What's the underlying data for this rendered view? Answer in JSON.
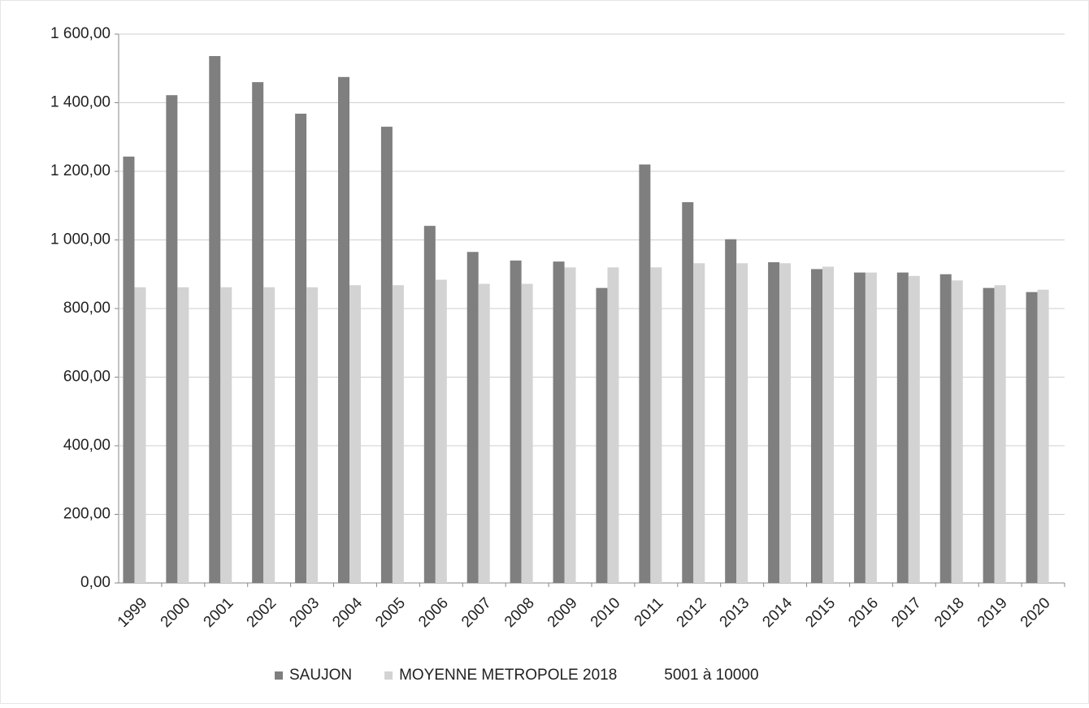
{
  "chart_data": {
    "type": "bar",
    "categories": [
      "1999",
      "2000",
      "2001",
      "2002",
      "2003",
      "2004",
      "2005",
      "2006",
      "2007",
      "2008",
      "2009",
      "2010",
      "2011",
      "2012",
      "2013",
      "2014",
      "2015",
      "2016",
      "2017",
      "2018",
      "2019",
      "2020"
    ],
    "series": [
      {
        "name": "SAUJON",
        "color": "#7f7f7f",
        "values": [
          1243,
          1422,
          1536,
          1460,
          1368,
          1475,
          1330,
          1041,
          965,
          940,
          937,
          860,
          1220,
          1110,
          1002,
          935,
          915,
          905,
          905,
          900,
          860,
          848
        ]
      },
      {
        "name": "MOYENNE METROPOLE 2018",
        "color": "#d3d3d3",
        "values": [
          862,
          862,
          862,
          862,
          862,
          868,
          868,
          884,
          872,
          872,
          920,
          920,
          920,
          932,
          932,
          932,
          922,
          905,
          895,
          882,
          868,
          855
        ]
      },
      {
        "name": "5001 à 10000",
        "color": "#ffffff",
        "values": [
          null,
          null,
          null,
          null,
          null,
          null,
          null,
          null,
          null,
          null,
          null,
          null,
          null,
          null,
          null,
          null,
          null,
          null,
          null,
          null,
          null,
          null
        ]
      }
    ],
    "ylim": [
      0,
      1600
    ],
    "yticks": [
      {
        "value": 0,
        "label": "0,00"
      },
      {
        "value": 200,
        "label": "200,00"
      },
      {
        "value": 400,
        "label": "400,00"
      },
      {
        "value": 600,
        "label": "600,00"
      },
      {
        "value": 800,
        "label": "800,00"
      },
      {
        "value": 1000,
        "label": "1 000,00"
      },
      {
        "value": 1200,
        "label": "1 200,00"
      },
      {
        "value": 1400,
        "label": "1 400,00"
      },
      {
        "value": 1600,
        "label": "1 600,00"
      }
    ],
    "grid": true,
    "legend": "bottom"
  }
}
